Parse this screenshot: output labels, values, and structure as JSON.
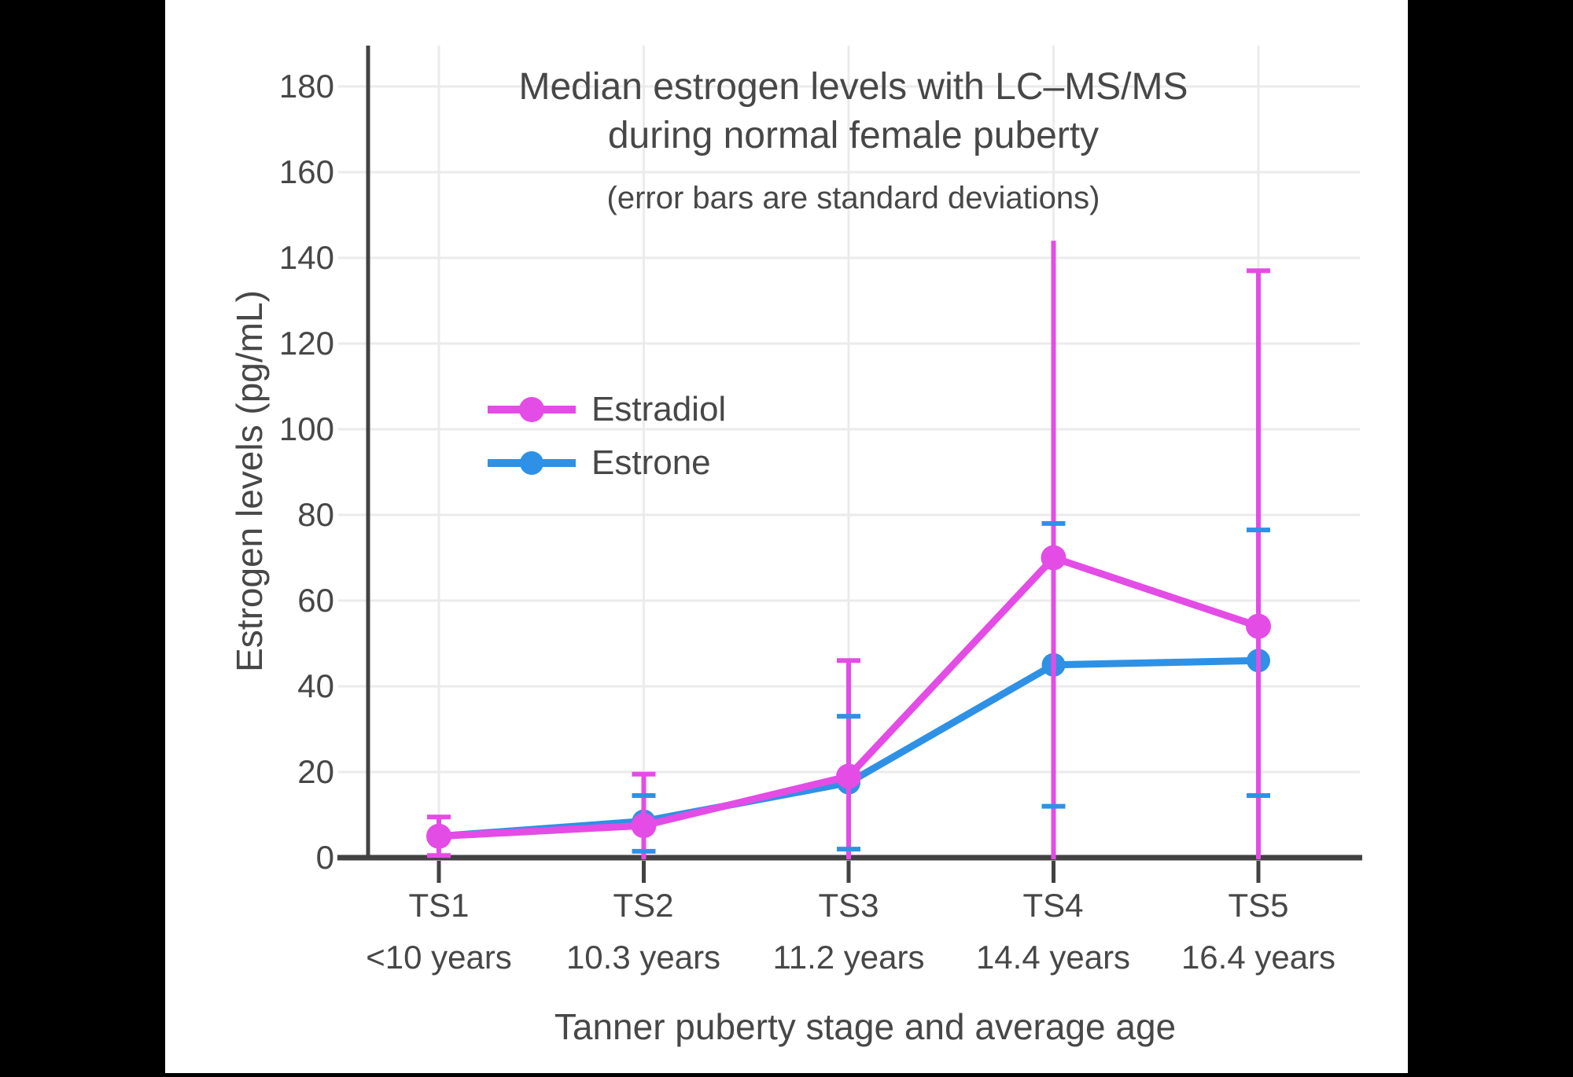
{
  "figure": {
    "background": "#000000",
    "paper_color": "#ffffff",
    "text_color": "#474747",
    "axis_color": "#424242",
    "grid_color": "#ebebeb"
  },
  "chart_data": {
    "type": "line",
    "title_lines": [
      "Median estrogen levels with LC–MS/MS",
      "during normal female puberty"
    ],
    "subtitle": "(error bars are standard deviations)",
    "xlabel": "Tanner puberty stage and average age",
    "ylabel": "Estrogen levels (pg/mL)",
    "ylim": [
      0,
      190
    ],
    "grid": true,
    "legend_position": "upper-left-inside",
    "yticks": [
      "0",
      "20",
      "40",
      "60",
      "80",
      "100",
      "120",
      "140",
      "160",
      "180"
    ],
    "ytick_values": [
      0,
      20,
      40,
      60,
      80,
      100,
      120,
      140,
      160,
      180
    ],
    "categories": [
      "TS1",
      "TS2",
      "TS3",
      "TS4",
      "TS5"
    ],
    "ages": [
      "<10 years",
      "10.3 years",
      "11.2 years",
      "14.4 years",
      "16.4 years"
    ],
    "series": [
      {
        "name": "Estradiol",
        "color": "#E44CE6",
        "values": [
          5,
          7.5,
          19,
          70,
          54
        ],
        "error_high": [
          9.5,
          19.5,
          46,
          144,
          137
        ],
        "error_low": [
          0.5,
          0,
          0,
          0,
          0
        ],
        "cap_high": [
          true,
          true,
          true,
          false,
          true
        ],
        "cap_low": [
          true,
          false,
          false,
          false,
          false
        ]
      },
      {
        "name": "Estrone",
        "color": "#2E91E5",
        "values": [
          5,
          8.5,
          17.5,
          45,
          46
        ],
        "error_high": [
          null,
          14.5,
          33,
          78,
          76.5
        ],
        "error_low": [
          null,
          1.5,
          2,
          12,
          14.5
        ],
        "cap_high": [
          false,
          true,
          true,
          true,
          true
        ],
        "cap_low": [
          false,
          true,
          true,
          true,
          true
        ]
      }
    ]
  }
}
